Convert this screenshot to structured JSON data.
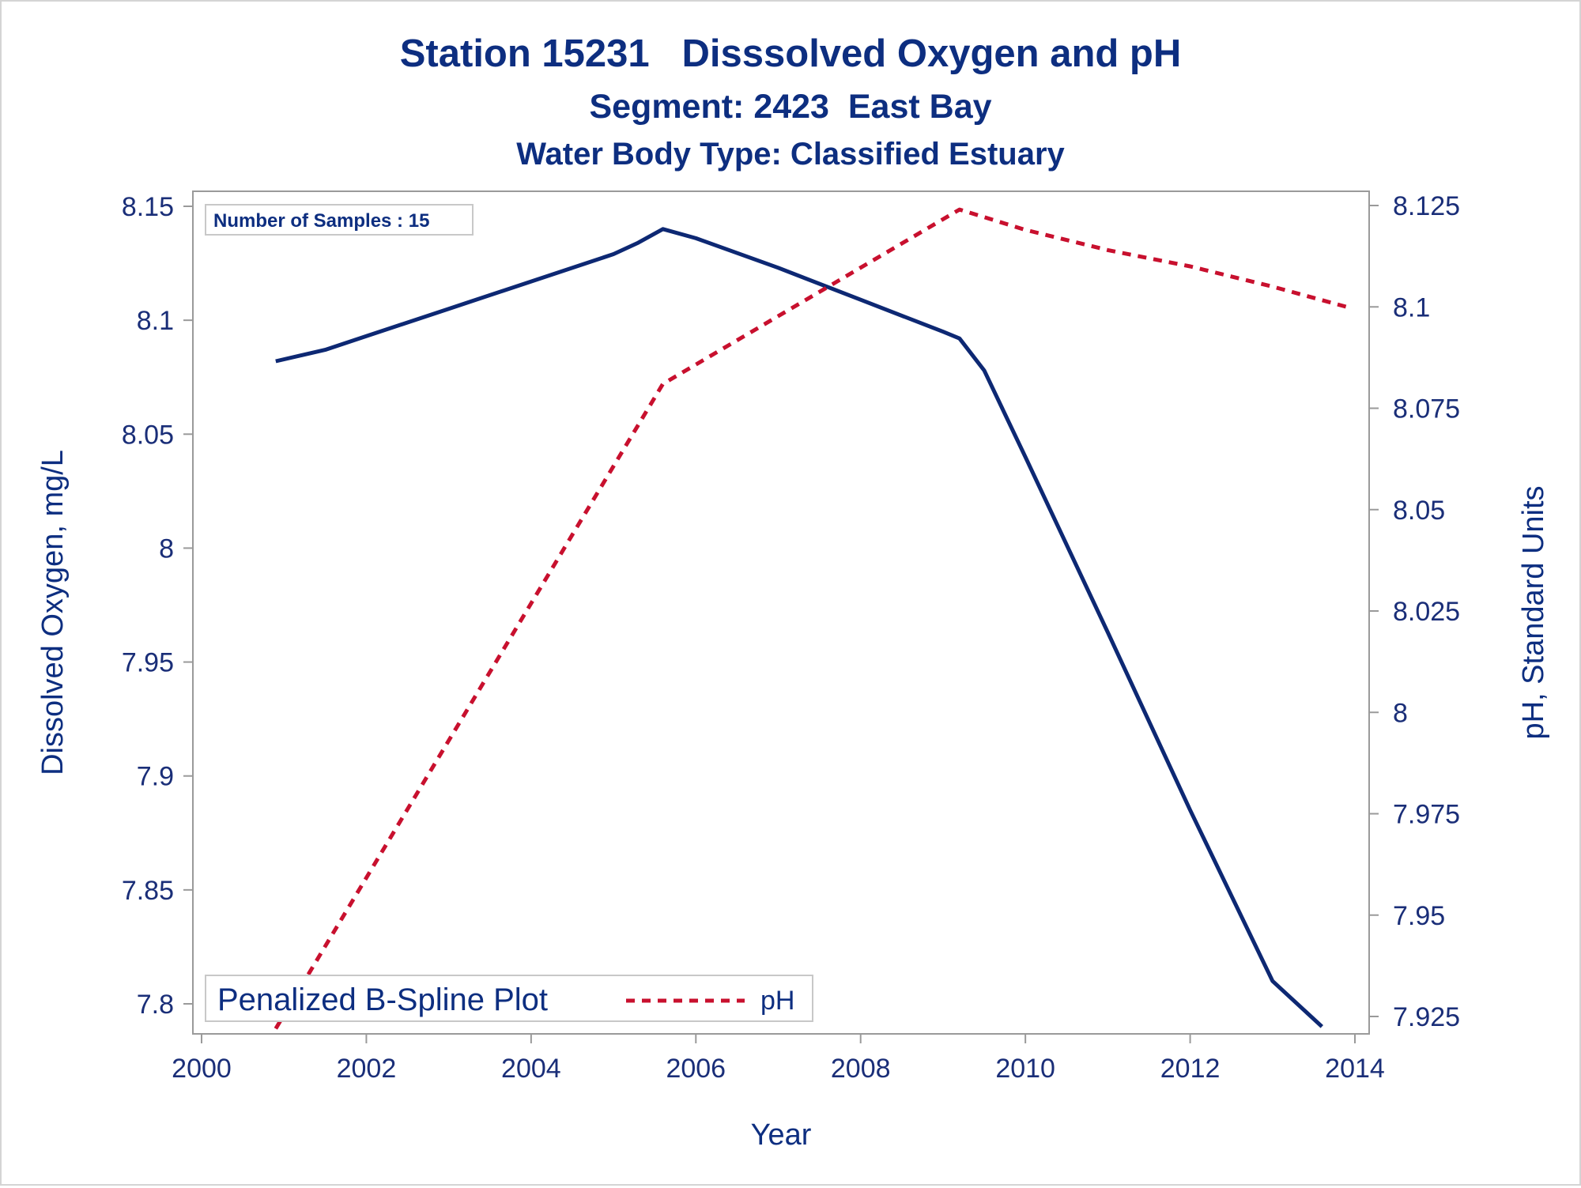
{
  "titles": {
    "line1": "Station 15231   Disssolved Oxygen and pH",
    "line2": "Segment: 2423  East Bay",
    "line3": "Water Body Type: Classified Estuary"
  },
  "inset_text": "Number of Samples : 15",
  "legend": {
    "entries": [
      "Penalized B-Spline Plot",
      "pH"
    ]
  },
  "colors": {
    "do_series": "#0d2873",
    "ph_series": "#c8102e",
    "text": "#0d2e80",
    "axis": "#9a9a9a"
  },
  "chart_data": {
    "type": "line",
    "title": "Station 15231   Disssolved Oxygen and pH",
    "subtitles": [
      "Segment: 2423  East Bay",
      "Water Body Type: Classified Estuary"
    ],
    "xlabel": "Year",
    "ylabel": "Dissolved Oxygen, mg/L",
    "y2label": "pH, Standard Units",
    "xlim": [
      2000,
      2014
    ],
    "ylim": [
      7.79,
      8.155
    ],
    "y2lim": [
      7.924,
      8.128
    ],
    "x_ticks": [
      "2000",
      "2002",
      "2004",
      "2006",
      "2008",
      "2010",
      "2012",
      "2014"
    ],
    "y_ticks": [
      "7.8",
      "7.85",
      "7.9",
      "7.95",
      "8",
      "8.05",
      "8.1",
      "8.15"
    ],
    "y2_ticks": [
      "7.925",
      "7.95",
      "7.975",
      "8",
      "8.025",
      "8.05",
      "8.075",
      "8.1",
      "8.125"
    ],
    "grid": false,
    "legend_position": "bottom-left",
    "series": [
      {
        "name": "Penalized B-Spline Plot",
        "axis": "left",
        "style": "solid",
        "x": [
          2000.9,
          2001.5,
          2002.0,
          2003.0,
          2004.0,
          2005.0,
          2005.3,
          2005.6,
          2006.0,
          2007.0,
          2008.0,
          2009.0,
          2009.2,
          2009.5,
          2010.0,
          2011.0,
          2012.0,
          2013.0,
          2013.6
        ],
        "y": [
          8.082,
          8.087,
          8.093,
          8.105,
          8.117,
          8.129,
          8.134,
          8.14,
          8.136,
          8.123,
          8.109,
          8.095,
          8.092,
          8.078,
          8.04,
          7.963,
          7.885,
          7.81,
          7.79
        ]
      },
      {
        "name": "pH",
        "axis": "right",
        "style": "dashed",
        "x": [
          2000.9,
          2005.6,
          2009.2,
          2010.0,
          2011.0,
          2012.0,
          2013.0,
          2013.9
        ],
        "y": [
          7.922,
          8.081,
          8.124,
          8.119,
          8.114,
          8.11,
          8.105,
          8.1
        ]
      }
    ]
  }
}
